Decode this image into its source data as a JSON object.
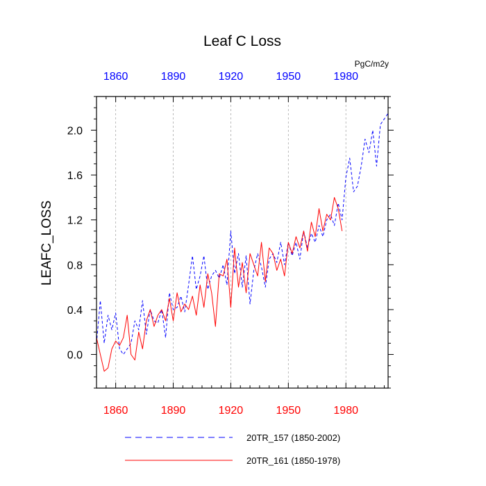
{
  "chart_data": {
    "type": "line",
    "title": "Leaf C Loss",
    "ylabel": "LEAFC_LOSS",
    "units": "PgC/m2y",
    "xlim": [
      1850,
      2002
    ],
    "ylim": [
      -0.3,
      2.3
    ],
    "x_ticks": [
      1860,
      1890,
      1920,
      1950,
      1980
    ],
    "y_ticks": [
      0.0,
      0.4,
      0.8,
      1.2,
      1.6,
      2.0
    ],
    "y_tick_labels": [
      "0.0",
      "0.4",
      "0.8",
      "1.2",
      "1.6",
      "2.0"
    ],
    "grid": "vertical dashed at x ticks",
    "colors": {
      "top_axis": "#0000ff",
      "bottom_axis": "#ff0000"
    },
    "series": [
      {
        "name": "20TR_157 (1850-2002)",
        "color": "#0000ff",
        "style": "dashed",
        "x": [
          1850,
          1852,
          1854,
          1856,
          1858,
          1860,
          1862,
          1864,
          1866,
          1868,
          1870,
          1872,
          1874,
          1876,
          1878,
          1880,
          1882,
          1884,
          1886,
          1888,
          1890,
          1892,
          1894,
          1896,
          1898,
          1900,
          1902,
          1904,
          1906,
          1908,
          1910,
          1912,
          1914,
          1916,
          1918,
          1920,
          1922,
          1924,
          1926,
          1928,
          1930,
          1932,
          1934,
          1936,
          1938,
          1940,
          1942,
          1944,
          1946,
          1948,
          1950,
          1952,
          1954,
          1956,
          1958,
          1960,
          1962,
          1964,
          1966,
          1968,
          1970,
          1972,
          1974,
          1976,
          1978,
          1980,
          1982,
          1984,
          1986,
          1988,
          1990,
          1992,
          1994,
          1996,
          1998,
          2000,
          2002
        ],
        "values": [
          0.1,
          0.48,
          0.1,
          0.35,
          0.22,
          0.37,
          0.05,
          0.0,
          0.05,
          0.1,
          0.3,
          0.22,
          0.48,
          0.18,
          0.4,
          0.3,
          0.28,
          0.4,
          0.15,
          0.55,
          0.4,
          0.42,
          0.52,
          0.38,
          0.62,
          0.88,
          0.58,
          0.7,
          0.88,
          0.58,
          0.7,
          0.75,
          0.68,
          0.8,
          0.62,
          1.1,
          0.72,
          0.9,
          0.6,
          0.88,
          0.45,
          0.75,
          0.9,
          0.78,
          0.6,
          0.85,
          0.9,
          0.82,
          1.0,
          0.8,
          1.0,
          0.88,
          1.0,
          0.85,
          1.1,
          0.95,
          1.08,
          1.0,
          1.15,
          1.05,
          1.2,
          1.25,
          1.15,
          1.35,
          1.2,
          1.58,
          1.75,
          1.45,
          1.5,
          1.68,
          1.92,
          1.8,
          2.0,
          1.68,
          2.05,
          2.1,
          2.15
        ]
      },
      {
        "name": "20TR_161 (1850-1978)",
        "color": "#ff0000",
        "style": "solid",
        "x": [
          1850,
          1852,
          1854,
          1856,
          1858,
          1860,
          1862,
          1864,
          1866,
          1868,
          1870,
          1872,
          1874,
          1876,
          1878,
          1880,
          1882,
          1884,
          1886,
          1888,
          1890,
          1892,
          1894,
          1896,
          1898,
          1900,
          1902,
          1904,
          1906,
          1908,
          1910,
          1912,
          1914,
          1916,
          1918,
          1920,
          1922,
          1924,
          1926,
          1928,
          1930,
          1932,
          1934,
          1936,
          1938,
          1940,
          1942,
          1944,
          1946,
          1948,
          1950,
          1952,
          1954,
          1956,
          1958,
          1960,
          1962,
          1964,
          1966,
          1968,
          1970,
          1972,
          1974,
          1976,
          1978
        ],
        "values": [
          0.15,
          0.0,
          -0.15,
          -0.12,
          0.05,
          0.12,
          0.08,
          0.15,
          0.35,
          0.0,
          -0.05,
          0.2,
          0.05,
          0.3,
          0.4,
          0.25,
          0.35,
          0.4,
          0.3,
          0.5,
          0.3,
          0.55,
          0.38,
          0.45,
          0.4,
          0.52,
          0.35,
          0.62,
          0.42,
          0.72,
          0.55,
          0.25,
          0.72,
          0.7,
          0.85,
          0.42,
          0.95,
          0.6,
          0.82,
          0.55,
          0.9,
          0.8,
          0.7,
          1.0,
          0.65,
          0.95,
          0.9,
          0.75,
          0.85,
          0.7,
          1.0,
          0.9,
          1.05,
          0.95,
          1.1,
          0.92,
          1.18,
          1.05,
          1.3,
          1.1,
          1.25,
          1.2,
          1.4,
          1.3,
          1.1
        ]
      }
    ]
  }
}
